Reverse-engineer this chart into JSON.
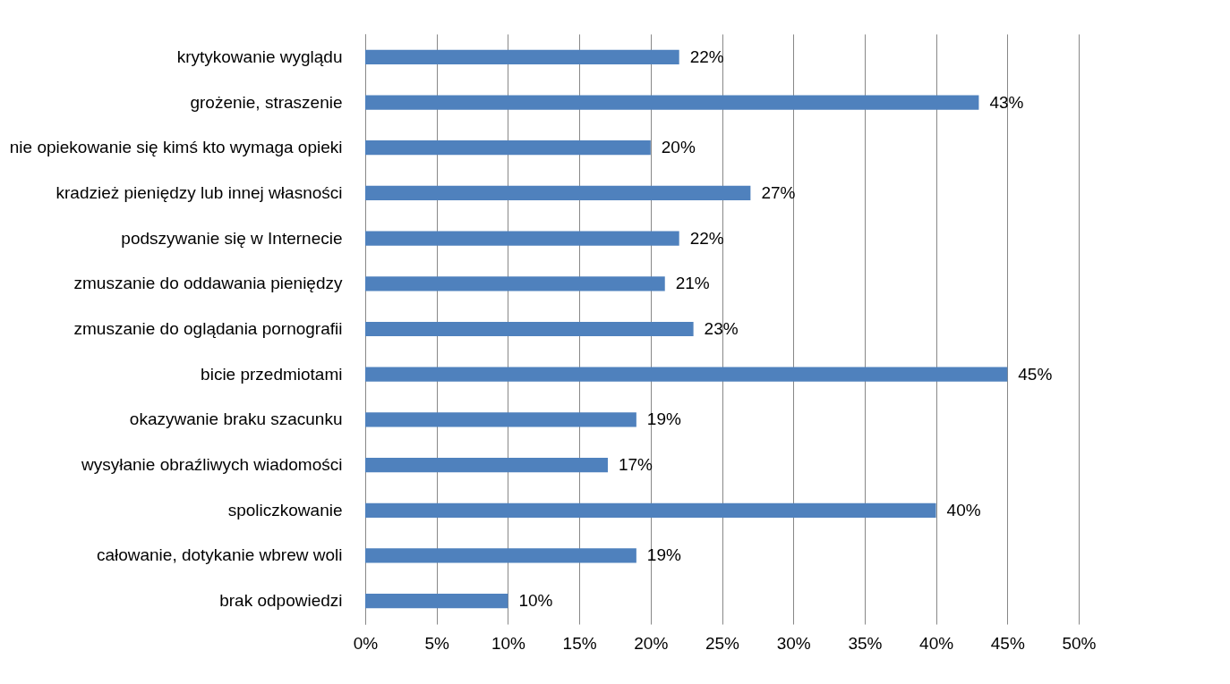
{
  "chart_data": {
    "type": "bar",
    "orientation": "horizontal",
    "categories": [
      "krytykowanie wyglądu",
      "grożenie, straszenie",
      "nie opiekowanie się kimś kto wymaga opieki",
      "kradzież pieniędzy lub innej własności",
      "podszywanie się w Internecie",
      "zmuszanie do oddawania pieniędzy",
      "zmuszanie do oglądania pornografii",
      "bicie przedmiotami",
      "okazywanie braku szacunku",
      "wysyłanie obraźliwych wiadomości",
      "spoliczkowanie",
      "całowanie, dotykanie wbrew woli",
      "brak odpowiedzi"
    ],
    "values": [
      22,
      43,
      20,
      27,
      22,
      21,
      23,
      45,
      19,
      17,
      40,
      19,
      10
    ],
    "value_labels": [
      "22%",
      "43%",
      "20%",
      "27%",
      "22%",
      "21%",
      "23%",
      "45%",
      "19%",
      "17%",
      "40%",
      "19%",
      "10%"
    ],
    "color": "#4f81bd",
    "xlim": [
      0,
      50
    ],
    "xticks": [
      {
        "value": 0,
        "label": "0%"
      },
      {
        "value": 5,
        "label": "5%"
      },
      {
        "value": 10,
        "label": "10%"
      },
      {
        "value": 15,
        "label": "15%"
      },
      {
        "value": 20,
        "label": "20%"
      },
      {
        "value": 25,
        "label": "25%"
      },
      {
        "value": 30,
        "label": "30%"
      },
      {
        "value": 35,
        "label": "35%"
      },
      {
        "value": 40,
        "label": "40%"
      },
      {
        "value": 45,
        "label": "45%"
      },
      {
        "value": 50,
        "label": "50%"
      }
    ],
    "grid": "x"
  }
}
